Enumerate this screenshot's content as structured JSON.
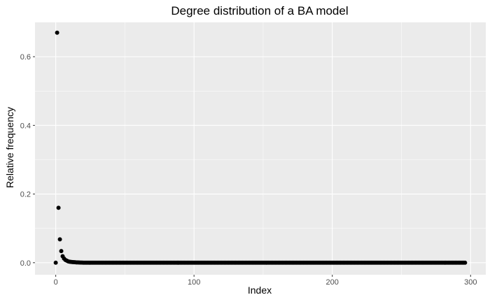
{
  "chart_data": {
    "type": "scatter",
    "title": "Degree distribution of a BA model",
    "xlabel": "Index",
    "ylabel": "Relative frequency",
    "xlim": [
      -15,
      311
    ],
    "ylim": [
      -0.035,
      0.7
    ],
    "x_ticks": [
      0,
      100,
      200,
      300
    ],
    "x_tick_labels": [
      "0",
      "100",
      "200",
      "300"
    ],
    "y_ticks": [
      0.0,
      0.2,
      0.4,
      0.6
    ],
    "y_tick_labels": [
      "0.0",
      "0.2",
      "0.4",
      "0.6"
    ],
    "grid": true,
    "legend": "none",
    "point_color": "#000000",
    "panel_background": "#ebebeb",
    "grid_color": "#ffffff",
    "series": [
      {
        "x_start": 0,
        "x_end": 296,
        "x_step": 1,
        "values_head": [
          0.0,
          0.67,
          0.16,
          0.068,
          0.034,
          0.019,
          0.012,
          0.008,
          0.006,
          0.004,
          0.003,
          0.0025,
          0.002,
          0.0016,
          0.0013,
          0.001,
          0.0008,
          0.0006,
          0.0005,
          0.0004
        ],
        "values_tail": 0.0
      }
    ]
  }
}
